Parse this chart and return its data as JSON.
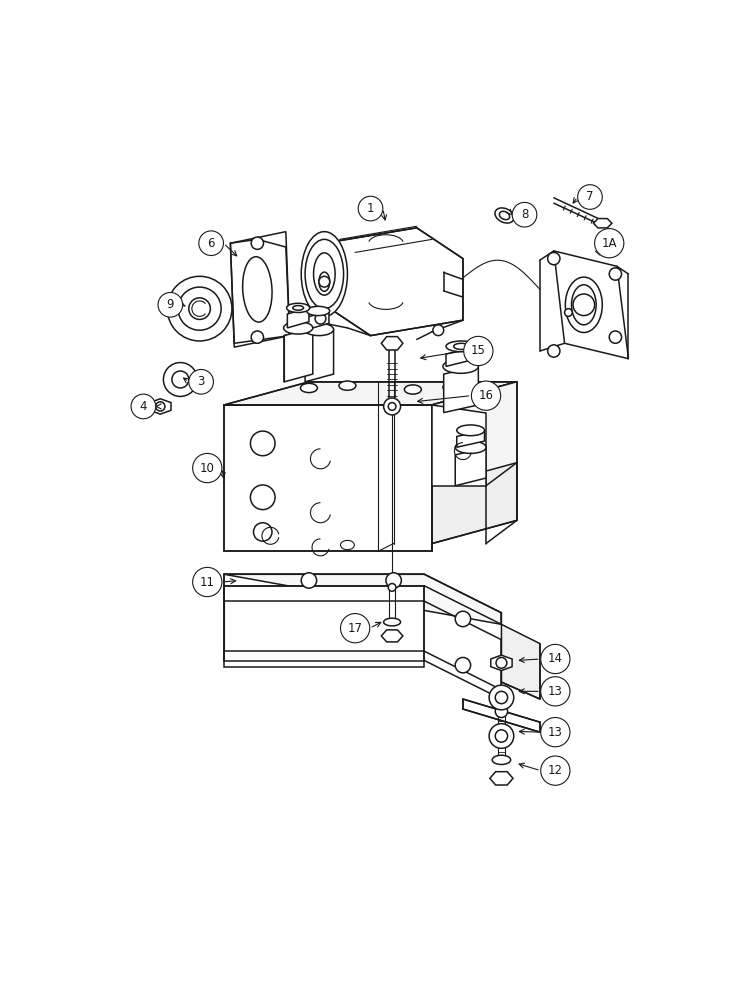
{
  "background_color": "#ffffff",
  "line_color": "#1a1a1a",
  "fig_width": 7.32,
  "fig_height": 10.0,
  "dpi": 100
}
